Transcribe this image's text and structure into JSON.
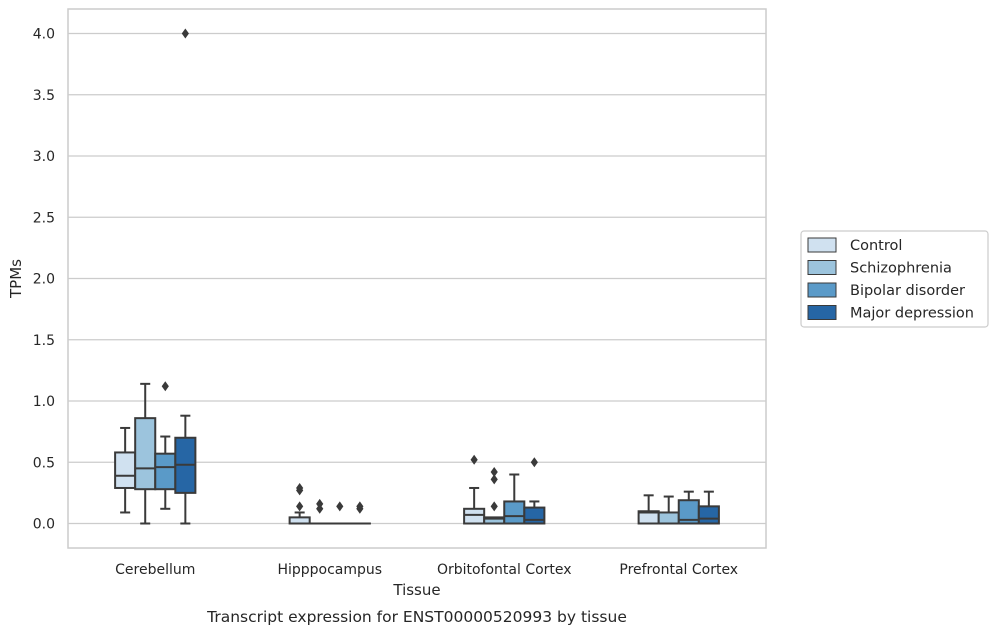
{
  "colors": {
    "Control": "#d0e1f0",
    "Schizophrenia": "#9cc4dd",
    "Bipolar disorder": "#5a9ac8",
    "Major depression": "#2666a5",
    "line": "#3a3a3a",
    "grid": "#cccccc",
    "frame": "#cccccc"
  },
  "chart_data": {
    "type": "box",
    "xlabel": "Tissue",
    "ylabel": "TPMs",
    "caption": "Transcript expression for ENST00000520993 by tissue",
    "ylim": [
      -0.2,
      4.2
    ],
    "yticks": [
      "0.0",
      "0.5",
      "1.0",
      "1.5",
      "2.0",
      "2.5",
      "3.0",
      "3.5",
      "4.0"
    ],
    "grid": "horizontal",
    "legend_placement": "right",
    "categories": [
      "Cerebellum",
      "Hipppocampus",
      "Orbitofontal Cortex",
      "Prefrontal Cortex"
    ],
    "series": [
      {
        "name": "Control",
        "boxes": [
          {
            "whislo": 0.09,
            "q1": 0.29,
            "med": 0.39,
            "q3": 0.58,
            "whishi": 0.78,
            "fliers": []
          },
          {
            "whislo": 0.0,
            "q1": 0.0,
            "med": 0.0,
            "q3": 0.05,
            "whishi": 0.09,
            "fliers": [
              0.14,
              0.27,
              0.29
            ]
          },
          {
            "whislo": 0.0,
            "q1": 0.0,
            "med": 0.07,
            "q3": 0.12,
            "whishi": 0.29,
            "fliers": [
              0.52
            ]
          },
          {
            "whislo": 0.0,
            "q1": 0.0,
            "med": 0.09,
            "q3": 0.1,
            "whishi": 0.23,
            "fliers": []
          }
        ]
      },
      {
        "name": "Schizophrenia",
        "boxes": [
          {
            "whislo": 0.0,
            "q1": 0.28,
            "med": 0.45,
            "q3": 0.86,
            "whishi": 1.14,
            "fliers": []
          },
          {
            "whislo": 0.0,
            "q1": 0.0,
            "med": 0.0,
            "q3": 0.0,
            "whishi": 0.0,
            "fliers": [
              0.12,
              0.16
            ]
          },
          {
            "whislo": 0.0,
            "q1": 0.0,
            "med": 0.04,
            "q3": 0.05,
            "whishi": 0.05,
            "fliers": [
              0.14,
              0.36,
              0.42
            ]
          },
          {
            "whislo": 0.0,
            "q1": 0.0,
            "med": 0.0,
            "q3": 0.09,
            "whishi": 0.22,
            "fliers": []
          }
        ]
      },
      {
        "name": "Bipolar disorder",
        "boxes": [
          {
            "whislo": 0.12,
            "q1": 0.28,
            "med": 0.46,
            "q3": 0.57,
            "whishi": 0.71,
            "fliers": [
              1.12
            ]
          },
          {
            "whislo": 0.0,
            "q1": 0.0,
            "med": 0.0,
            "q3": 0.0,
            "whishi": 0.0,
            "fliers": [
              0.14
            ]
          },
          {
            "whislo": 0.0,
            "q1": 0.0,
            "med": 0.06,
            "q3": 0.18,
            "whishi": 0.4,
            "fliers": []
          },
          {
            "whislo": 0.0,
            "q1": 0.0,
            "med": 0.03,
            "q3": 0.19,
            "whishi": 0.26,
            "fliers": []
          }
        ]
      },
      {
        "name": "Major depression",
        "boxes": [
          {
            "whislo": 0.0,
            "q1": 0.25,
            "med": 0.48,
            "q3": 0.7,
            "whishi": 0.88,
            "fliers": [
              4.0
            ]
          },
          {
            "whislo": 0.0,
            "q1": 0.0,
            "med": 0.0,
            "q3": 0.0,
            "whishi": 0.0,
            "fliers": [
              0.12,
              0.14
            ]
          },
          {
            "whislo": 0.0,
            "q1": 0.0,
            "med": 0.03,
            "q3": 0.13,
            "whishi": 0.18,
            "fliers": [
              0.5
            ]
          },
          {
            "whislo": 0.0,
            "q1": 0.0,
            "med": 0.04,
            "q3": 0.14,
            "whishi": 0.26,
            "fliers": []
          }
        ]
      }
    ]
  }
}
